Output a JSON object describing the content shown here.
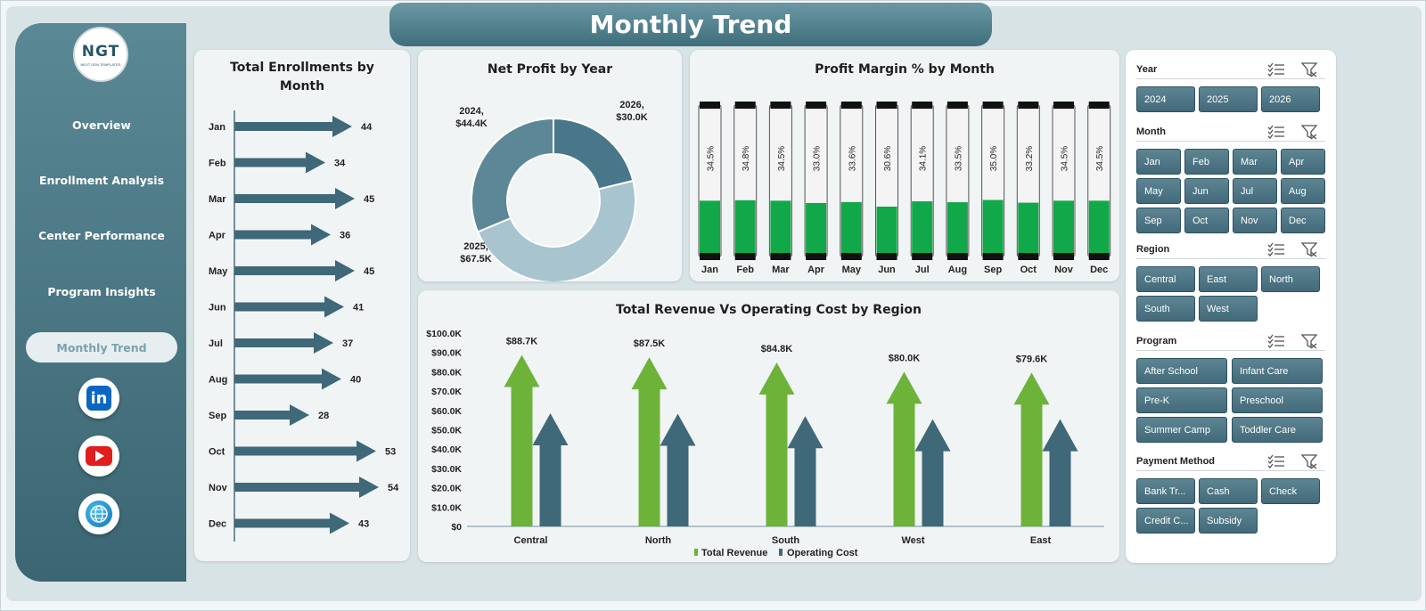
{
  "page": {
    "title": "Monthly Trend"
  },
  "logo": {
    "text": "NGT",
    "subtext": "NEXT GEN TEMPLATES"
  },
  "nav": {
    "items": [
      {
        "label": "Overview"
      },
      {
        "label": "Enrollment Analysis"
      },
      {
        "label": "Center Performance"
      },
      {
        "label": "Program Insights"
      },
      {
        "label": "Monthly Trend",
        "active": true
      }
    ]
  },
  "social": {
    "linkedin_text": "in"
  },
  "colors": {
    "teal_dark": "#3f6e7c",
    "green": "#6fb63a",
    "steel": "#3f6878",
    "margin_green": "#0ea64b"
  },
  "enrollments": {
    "title_line1": "Total Enrollments by",
    "title_line2": "Month"
  },
  "net_profit": {
    "title": "Net Profit by Year"
  },
  "profit_margin": {
    "title": "Profit Margin % by Month"
  },
  "revenue_cost": {
    "title": "Total Revenue Vs Operating Cost by Region",
    "legend": [
      "Total Revenue",
      "Operating Cost"
    ]
  },
  "chart_data": [
    {
      "type": "bar",
      "orientation": "horizontal",
      "title": "Total Enrollments by Month",
      "categories": [
        "Jan",
        "Feb",
        "Mar",
        "Apr",
        "May",
        "Jun",
        "Jul",
        "Aug",
        "Sep",
        "Oct",
        "Nov",
        "Dec"
      ],
      "values": [
        44,
        34,
        45,
        36,
        45,
        41,
        37,
        40,
        28,
        53,
        54,
        43
      ]
    },
    {
      "type": "pie",
      "style": "donut",
      "title": "Net Profit by Year",
      "slices": [
        {
          "label": "2024",
          "value": 44.4,
          "display": "$44.4K",
          "color": "#5b8796"
        },
        {
          "label": "2025",
          "value": 67.5,
          "display": "$67.5K",
          "color": "#a7c4cf"
        },
        {
          "label": "2026",
          "value": 30.0,
          "display": "$30.0K",
          "color": "#4a7689"
        }
      ]
    },
    {
      "type": "bar",
      "title": "Profit Margin % by Month",
      "categories": [
        "Jan",
        "Feb",
        "Mar",
        "Apr",
        "May",
        "Jun",
        "Jul",
        "Aug",
        "Sep",
        "Oct",
        "Nov",
        "Dec"
      ],
      "values": [
        34.5,
        34.8,
        34.5,
        33.0,
        33.6,
        30.6,
        34.1,
        33.5,
        35.0,
        33.2,
        34.5,
        34.5
      ],
      "labels": [
        "34.5%",
        "34.8%",
        "34.5%",
        "33.0%",
        "33.6%",
        "30.6%",
        "34.1%",
        "33.5%",
        "35.0%",
        "33.2%",
        "34.5%",
        "34.5%"
      ],
      "ylim": [
        0,
        100
      ]
    },
    {
      "type": "bar",
      "title": "Total Revenue Vs Operating Cost by Region",
      "categories": [
        "Central",
        "North",
        "South",
        "West",
        "East"
      ],
      "series": [
        {
          "name": "Total Revenue",
          "values": [
            88.7,
            87.5,
            84.8,
            80.0,
            79.6
          ],
          "labels": [
            "$88.7K",
            "$87.5K",
            "$84.8K",
            "$80.0K",
            "$79.6K"
          ]
        },
        {
          "name": "Operating Cost",
          "values": [
            58.5,
            58.3,
            57.0,
            55.5,
            55.5
          ]
        }
      ],
      "yticks": [
        "$0",
        "$10.0K",
        "$20.0K",
        "$30.0K",
        "$40.0K",
        "$50.0K",
        "$60.0K",
        "$70.0K",
        "$80.0K",
        "$90.0K",
        "$100.0K"
      ],
      "ylim": [
        0,
        100
      ],
      "legend_position": "bottom"
    }
  ],
  "slicers": [
    {
      "name": "Year",
      "options": [
        "2024",
        "2025",
        "2026"
      ]
    },
    {
      "name": "Month",
      "options": [
        "Jan",
        "Feb",
        "Mar",
        "Apr",
        "May",
        "Jun",
        "Jul",
        "Aug",
        "Sep",
        "Oct",
        "Nov",
        "Dec"
      ]
    },
    {
      "name": "Region",
      "options": [
        "Central",
        "East",
        "North",
        "South",
        "West"
      ]
    },
    {
      "name": "Program",
      "options": [
        "After School",
        "Infant Care",
        "Pre-K",
        "Preschool",
        "Summer Camp",
        "Toddler Care"
      ]
    },
    {
      "name": "Payment Method",
      "options": [
        "Bank Tr...",
        "Cash",
        "Check",
        "Credit C...",
        "Subsidy"
      ]
    }
  ]
}
